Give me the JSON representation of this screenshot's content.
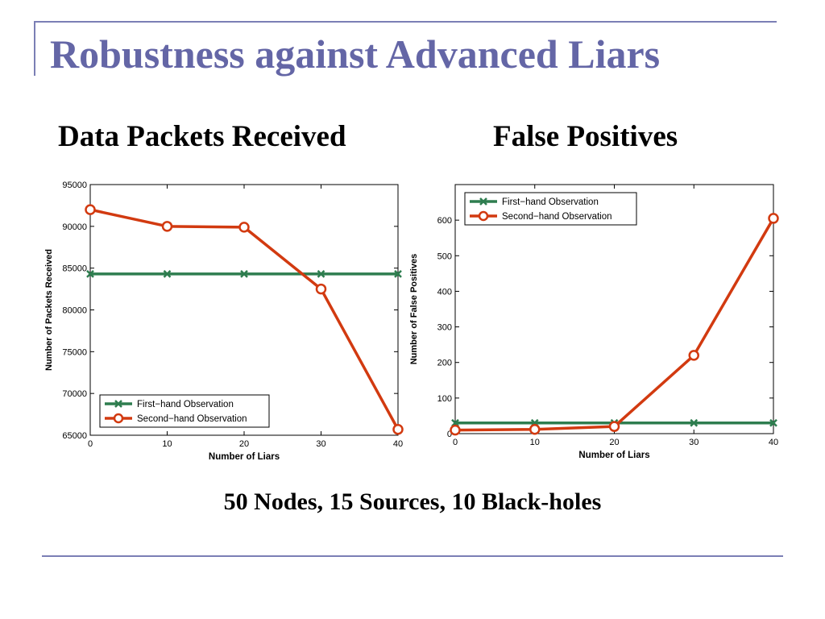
{
  "slide": {
    "title": "Robustness against Advanced Liars",
    "caption": "50 Nodes, 15 Sources, 10 Black-holes"
  },
  "colors": {
    "accent": "#6466a6",
    "series_first": "#2e7d4f",
    "series_second": "#d23a10"
  },
  "chart_data": [
    {
      "type": "line",
      "title": "Data Packets Received",
      "xlabel": "Number of Liars",
      "ylabel": "Number of Packets Received",
      "x": [
        0,
        10,
        20,
        30,
        40
      ],
      "xlim": [
        0,
        40
      ],
      "ylim": [
        65000,
        95000
      ],
      "xticks": [
        "0",
        "10",
        "20",
        "30",
        "40"
      ],
      "yticks": [
        "65000",
        "70000",
        "75000",
        "80000",
        "85000",
        "90000",
        "95000"
      ],
      "grid": false,
      "legend_position": "bottom-left",
      "series": [
        {
          "name": "First−hand Observation",
          "marker": "x",
          "color": "#2e7d4f",
          "values": [
            84300,
            84300,
            84300,
            84300,
            84300
          ]
        },
        {
          "name": "Second−hand Observation",
          "marker": "o",
          "color": "#d23a10",
          "values": [
            92000,
            90000,
            89900,
            82500,
            65700
          ]
        }
      ]
    },
    {
      "type": "line",
      "title": "False Positives",
      "xlabel": "Number of Liars",
      "ylabel": "Number of False Positives",
      "x": [
        0,
        10,
        20,
        30,
        40
      ],
      "xlim": [
        0,
        40
      ],
      "ylim": [
        0,
        700
      ],
      "xticks": [
        "0",
        "10",
        "20",
        "30",
        "40"
      ],
      "yticks": [
        "0",
        "100",
        "200",
        "300",
        "400",
        "500",
        "600"
      ],
      "grid": false,
      "legend_position": "top-left",
      "series": [
        {
          "name": "First−hand Observation",
          "marker": "x",
          "color": "#2e7d4f",
          "values": [
            30,
            30,
            30,
            30,
            30
          ]
        },
        {
          "name": "Second−hand Observation",
          "marker": "o",
          "color": "#d23a10",
          "values": [
            10,
            12,
            20,
            220,
            605
          ]
        }
      ]
    }
  ]
}
